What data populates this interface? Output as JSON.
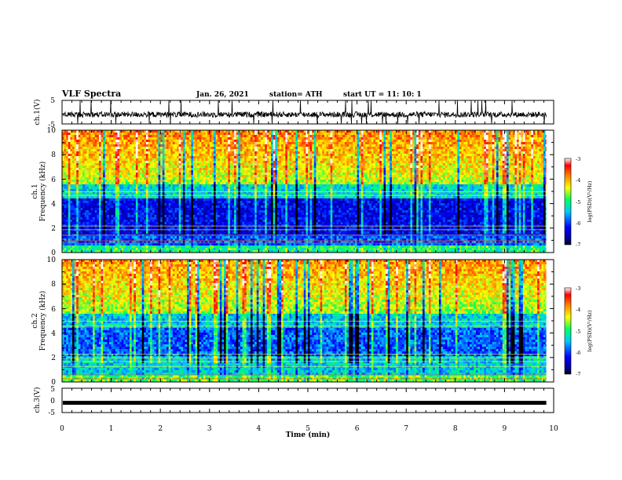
{
  "header": {
    "title": "VLF Spectra",
    "date": "Jan. 26, 2021",
    "station": "station= ATH",
    "start_ut": "start UT =  11: 10: 1"
  },
  "chart_data": [
    {
      "type": "line",
      "panel": "ch1-waveform",
      "ylabel": "ch.1(V)",
      "ylim": [
        -5,
        5
      ],
      "yticks": [
        "5",
        "-5"
      ],
      "xlim": [
        0,
        10
      ],
      "description_level": "noisy waveform around -1 V, spikes to +5 / -5 V"
    },
    {
      "type": "heatmap",
      "panel": "ch1-spectrogram",
      "ylabel": "ch.1",
      "ylabel2": "Frequency (kHz)",
      "ylim": [
        0,
        10
      ],
      "yticks": [
        "0",
        "2",
        "4",
        "6",
        "8",
        "10"
      ],
      "xlim": [
        0,
        10
      ],
      "colorbar": {
        "label": "log(PSD)(V²/Hz)",
        "range": [
          -7,
          -3
        ],
        "ticks": [
          "-3",
          "-4",
          "-5",
          "-6",
          "-7"
        ]
      }
    },
    {
      "type": "heatmap",
      "panel": "ch2-spectrogram",
      "ylabel": "ch.2",
      "ylabel2": "Frequency (kHz)",
      "ylim": [
        0,
        10
      ],
      "yticks": [
        "0",
        "2",
        "4",
        "6",
        "8",
        "10"
      ],
      "xlim": [
        0,
        10
      ],
      "colorbar": {
        "label": "log(PSD)(V²/Hz)",
        "range": [
          -7,
          -3
        ],
        "ticks": [
          "-3",
          "-4",
          "-5",
          "-6",
          "-7"
        ]
      }
    },
    {
      "type": "line",
      "panel": "ch3-waveform",
      "ylabel": "ch.3(V)",
      "ylim": [
        -5,
        5
      ],
      "yticks": [
        "5",
        "0",
        "-5"
      ],
      "xlim": [
        0,
        10
      ],
      "xlabel": "Time (min)",
      "xticks": [
        "0",
        "1",
        "2",
        "3",
        "4",
        "5",
        "6",
        "7",
        "8",
        "9",
        "10"
      ],
      "level": -1,
      "data_end_min": 9.85
    }
  ]
}
